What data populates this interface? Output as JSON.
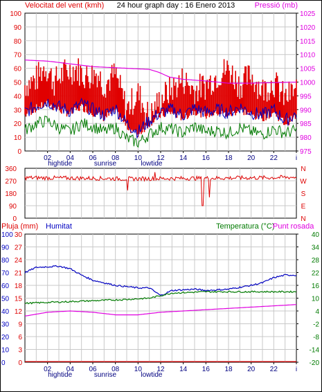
{
  "header": {
    "left_label": "Velocitat del vent (kmh)",
    "title": "24 hour graph day : 16 Enero 2013",
    "right_label": "Pressió (mb)"
  },
  "colors": {
    "wind": "#e00000",
    "pressure": "#e000e0",
    "blue": "#0000c0",
    "green": "#007a00",
    "red": "#dd0000",
    "grid": "#c8c8c8"
  },
  "x_axis": {
    "ticks": [
      "02",
      "04",
      "06",
      "08",
      "10",
      "12",
      "14",
      "16",
      "18",
      "20",
      "22",
      "i"
    ],
    "markers": [
      "hightide",
      "sunrise",
      "lowtide"
    ]
  },
  "chart_data": [
    {
      "type": "line",
      "y_left": {
        "min": 0,
        "max": 100,
        "ticks": [
          "0",
          "10",
          "20",
          "30",
          "40",
          "50",
          "60",
          "70",
          "80",
          "90",
          "100"
        ]
      },
      "y_right": {
        "min": 975,
        "max": 1025,
        "ticks": [
          "975",
          "980",
          "985",
          "990",
          "995",
          "1000",
          "1005",
          "1010",
          "1015",
          "1020",
          "1025"
        ]
      },
      "series": [
        {
          "color": "#e00000",
          "type": "bar",
          "anchors": [
            [
              0,
              48
            ],
            [
              1,
              52
            ],
            [
              1.8,
              62
            ],
            [
              2.6,
              50
            ],
            [
              3.5,
              57
            ],
            [
              4.5,
              60
            ],
            [
              5.4,
              54
            ],
            [
              6.4,
              57
            ],
            [
              7,
              48
            ],
            [
              8,
              56
            ],
            [
              9,
              30
            ],
            [
              9.5,
              36
            ],
            [
              10,
              42
            ],
            [
              11,
              24
            ],
            [
              12,
              38
            ],
            [
              13,
              45
            ],
            [
              14,
              52
            ],
            [
              15,
              44
            ],
            [
              16,
              48
            ],
            [
              17,
              55
            ],
            [
              18,
              60
            ],
            [
              19,
              48
            ],
            [
              20,
              55
            ],
            [
              21,
              44
            ],
            [
              22,
              50
            ],
            [
              23,
              38
            ],
            [
              24,
              45
            ]
          ]
        },
        {
          "color": "#0000c0",
          "anchors": [
            [
              0,
              28
            ],
            [
              1,
              33
            ],
            [
              2,
              36
            ],
            [
              3,
              32
            ],
            [
              4,
              29
            ],
            [
              5,
              34
            ],
            [
              6,
              30
            ],
            [
              7,
              26
            ],
            [
              8,
              31
            ],
            [
              9,
              20
            ],
            [
              10,
              14
            ],
            [
              11,
              22
            ],
            [
              12,
              28
            ],
            [
              13,
              30
            ],
            [
              14,
              26
            ],
            [
              15,
              31
            ],
            [
              16,
              28
            ],
            [
              17,
              30
            ],
            [
              18,
              28
            ],
            [
              19,
              32
            ],
            [
              20,
              28
            ],
            [
              21,
              26
            ],
            [
              22,
              30
            ],
            [
              23,
              22
            ],
            [
              24,
              27
            ]
          ]
        },
        {
          "color": "#007a00",
          "anchors": [
            [
              0,
              15
            ],
            [
              1,
              20
            ],
            [
              2,
              22
            ],
            [
              3,
              17
            ],
            [
              4,
              14
            ],
            [
              5,
              20
            ],
            [
              6,
              18
            ],
            [
              7,
              14
            ],
            [
              8,
              17
            ],
            [
              9,
              9
            ],
            [
              10,
              6
            ],
            [
              11,
              12
            ],
            [
              12,
              17
            ],
            [
              13,
              16
            ],
            [
              14,
              13
            ],
            [
              15,
              18
            ],
            [
              16,
              14
            ],
            [
              17,
              15
            ],
            [
              18,
              13
            ],
            [
              19,
              17
            ],
            [
              20,
              14
            ],
            [
              21,
              12
            ],
            [
              22,
              16
            ],
            [
              23,
              13
            ],
            [
              24,
              15
            ]
          ]
        },
        {
          "color": "#e000e0",
          "axis": "right",
          "anchors": [
            [
              0,
              1008
            ],
            [
              2,
              1007.6
            ],
            [
              4,
              1006.6
            ],
            [
              6,
              1005.6
            ],
            [
              8,
              1005.2
            ],
            [
              10,
              1004.8
            ],
            [
              11,
              1004.6
            ],
            [
              11.8,
              1003.6
            ],
            [
              12.8,
              1001.8
            ],
            [
              14,
              1001
            ],
            [
              16,
              1000.4
            ],
            [
              18,
              999.6
            ],
            [
              20,
              999.6
            ],
            [
              22,
              999.8
            ],
            [
              24,
              1000
            ]
          ]
        }
      ]
    },
    {
      "type": "line",
      "y_ticks": [
        "360",
        "270",
        "180",
        "90",
        "0"
      ],
      "y_letters": [
        "N",
        "W",
        "S",
        "E",
        "N"
      ],
      "series": [
        {
          "color": "#dd0000",
          "anchors": [
            [
              0,
              292
            ],
            [
              3,
              290
            ],
            [
              6,
              288
            ],
            [
              9,
              284
            ],
            [
              12,
              286
            ],
            [
              15,
              288
            ],
            [
              18,
              290
            ],
            [
              21,
              292
            ],
            [
              24,
              296
            ]
          ],
          "spikes": [
            [
              9.1,
              200
            ],
            [
              11.5,
              332
            ],
            [
              15.7,
              90
            ],
            [
              16.3,
              150
            ],
            [
              19,
              300
            ]
          ]
        }
      ]
    },
    {
      "type": "line",
      "left_labels": {
        "title1": "Pluja (mm)",
        "title2": "Humitat",
        "ticks_a": [
          "0",
          "10",
          "20",
          "30",
          "40",
          "50",
          "60",
          "70",
          "80",
          "90",
          "100"
        ],
        "ticks_b": [
          "0",
          "3",
          "6",
          "9",
          "12",
          "15",
          "18",
          "21",
          "24",
          "27",
          "30"
        ]
      },
      "right_labels": {
        "title1": "Temperatura (°C)",
        "title2": "Punt rosada",
        "ticks": [
          "-20",
          "-14",
          "-8",
          "-2",
          "4",
          "10",
          "16",
          "22",
          "28",
          "34",
          "40"
        ]
      },
      "series": [
        {
          "color": "#0000c0",
          "anchors": [
            [
              0,
              70
            ],
            [
              1,
              74
            ],
            [
              3,
              75
            ],
            [
              4,
              73
            ],
            [
              5,
              68
            ],
            [
              6,
              64
            ],
            [
              8,
              60
            ],
            [
              10,
              58
            ],
            [
              11,
              58
            ],
            [
              12,
              52
            ],
            [
              13,
              56
            ],
            [
              15,
              57
            ],
            [
              16,
              56
            ],
            [
              18,
              57
            ],
            [
              20,
              60
            ],
            [
              21,
              62
            ],
            [
              22,
              66
            ],
            [
              23,
              68
            ],
            [
              24,
              68
            ]
          ]
        },
        {
          "color": "#007a00",
          "anchors": [
            [
              0,
              46
            ],
            [
              3,
              47
            ],
            [
              6,
              48
            ],
            [
              9,
              49
            ],
            [
              11,
              50
            ],
            [
              12,
              52
            ],
            [
              13,
              54
            ],
            [
              16,
              55
            ],
            [
              20,
              55
            ],
            [
              24,
              55
            ]
          ]
        },
        {
          "color": "#e000e0",
          "anchors": [
            [
              0,
              36
            ],
            [
              2,
              39
            ],
            [
              4,
              40
            ],
            [
              6,
              39
            ],
            [
              8,
              37
            ],
            [
              10,
              37
            ],
            [
              12,
              39
            ],
            [
              14,
              40
            ],
            [
              16,
              41
            ],
            [
              18,
              42
            ],
            [
              20,
              43
            ],
            [
              22,
              44
            ],
            [
              24,
              45
            ]
          ]
        },
        {
          "color": "#dd0000",
          "anchors": [
            [
              0,
              0.5
            ],
            [
              24,
              0.5
            ]
          ]
        }
      ]
    }
  ]
}
